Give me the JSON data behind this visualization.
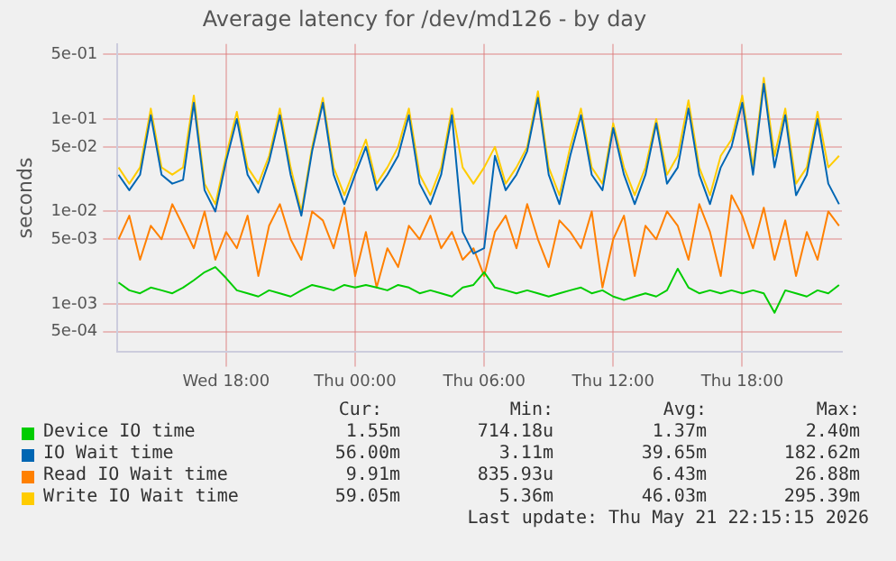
{
  "chart_data": {
    "type": "line",
    "title": "Average latency for /dev/md126 - by day",
    "ylabel": "seconds",
    "x": [
      "2026-05-20T13:00",
      "2026-05-20T13:30",
      "2026-05-20T14:00",
      "2026-05-20T14:30",
      "2026-05-20T15:00",
      "2026-05-20T15:30",
      "2026-05-20T16:00",
      "2026-05-20T16:30",
      "2026-05-20T17:00",
      "2026-05-20T17:30",
      "2026-05-20T18:00",
      "2026-05-20T18:30",
      "2026-05-20T19:00",
      "2026-05-20T19:30",
      "2026-05-20T20:00",
      "2026-05-20T20:30",
      "2026-05-20T21:00",
      "2026-05-20T21:30",
      "2026-05-20T22:00",
      "2026-05-20T22:30",
      "2026-05-20T23:00",
      "2026-05-20T23:30",
      "2026-05-21T00:00",
      "2026-05-21T00:30",
      "2026-05-21T01:00",
      "2026-05-21T01:30",
      "2026-05-21T02:00",
      "2026-05-21T02:30",
      "2026-05-21T03:00",
      "2026-05-21T03:30",
      "2026-05-21T04:00",
      "2026-05-21T04:30",
      "2026-05-21T05:00",
      "2026-05-21T05:30",
      "2026-05-21T06:00",
      "2026-05-21T06:30",
      "2026-05-21T07:00",
      "2026-05-21T07:30",
      "2026-05-21T08:00",
      "2026-05-21T08:30",
      "2026-05-21T09:00",
      "2026-05-21T09:30",
      "2026-05-21T10:00",
      "2026-05-21T10:30",
      "2026-05-21T11:00",
      "2026-05-21T11:30",
      "2026-05-21T12:00",
      "2026-05-21T12:30",
      "2026-05-21T13:00",
      "2026-05-21T13:30",
      "2026-05-21T14:00",
      "2026-05-21T14:30",
      "2026-05-21T15:00",
      "2026-05-21T15:30",
      "2026-05-21T16:00",
      "2026-05-21T16:30",
      "2026-05-21T17:00",
      "2026-05-21T17:30",
      "2026-05-21T18:00",
      "2026-05-21T18:30",
      "2026-05-21T19:00",
      "2026-05-21T19:30",
      "2026-05-21T20:00",
      "2026-05-21T20:30",
      "2026-05-21T21:00",
      "2026-05-21T21:30",
      "2026-05-21T22:00",
      "2026-05-21T22:30"
    ],
    "series": [
      {
        "name": "Device IO time",
        "color": "#00cc00",
        "values": [
          0.0017,
          0.0014,
          0.0013,
          0.0015,
          0.0014,
          0.0013,
          0.0015,
          0.0018,
          0.0022,
          0.0025,
          0.0019,
          0.0014,
          0.0013,
          0.0012,
          0.0014,
          0.0013,
          0.0012,
          0.0014,
          0.0016,
          0.0015,
          0.0014,
          0.0016,
          0.0015,
          0.0016,
          0.0015,
          0.0014,
          0.0016,
          0.0015,
          0.0013,
          0.0014,
          0.0013,
          0.0012,
          0.0015,
          0.0016,
          0.0022,
          0.0015,
          0.0014,
          0.0013,
          0.0014,
          0.0013,
          0.0012,
          0.0013,
          0.0014,
          0.0015,
          0.0013,
          0.0014,
          0.0012,
          0.0011,
          0.0012,
          0.0013,
          0.0012,
          0.0014,
          0.0024,
          0.0015,
          0.0013,
          0.0014,
          0.0013,
          0.0014,
          0.0013,
          0.0014,
          0.0013,
          0.0008,
          0.0014,
          0.0013,
          0.0012,
          0.0014,
          0.0013,
          0.0016
        ]
      },
      {
        "name": "IO Wait time",
        "color": "#0066b3",
        "values": [
          0.025,
          0.017,
          0.025,
          0.11,
          0.025,
          0.02,
          0.022,
          0.15,
          0.017,
          0.01,
          0.035,
          0.1,
          0.025,
          0.016,
          0.035,
          0.11,
          0.025,
          0.009,
          0.045,
          0.15,
          0.025,
          0.012,
          0.025,
          0.05,
          0.017,
          0.025,
          0.04,
          0.11,
          0.02,
          0.012,
          0.025,
          0.11,
          0.006,
          0.0035,
          0.004,
          0.04,
          0.017,
          0.025,
          0.045,
          0.17,
          0.025,
          0.012,
          0.04,
          0.11,
          0.025,
          0.017,
          0.08,
          0.025,
          0.012,
          0.025,
          0.09,
          0.02,
          0.03,
          0.13,
          0.025,
          0.012,
          0.03,
          0.05,
          0.15,
          0.025,
          0.24,
          0.03,
          0.11,
          0.015,
          0.025,
          0.1,
          0.02,
          0.012
        ]
      },
      {
        "name": "Read IO Wait time",
        "color": "#ff8000",
        "values": [
          0.005,
          0.009,
          0.003,
          0.007,
          0.005,
          0.012,
          0.007,
          0.004,
          0.01,
          0.003,
          0.006,
          0.004,
          0.009,
          0.002,
          0.007,
          0.012,
          0.005,
          0.003,
          0.01,
          0.008,
          0.004,
          0.011,
          0.002,
          0.006,
          0.0015,
          0.004,
          0.0025,
          0.007,
          0.005,
          0.009,
          0.004,
          0.006,
          0.003,
          0.004,
          0.002,
          0.006,
          0.009,
          0.004,
          0.012,
          0.005,
          0.0025,
          0.008,
          0.006,
          0.004,
          0.01,
          0.0015,
          0.005,
          0.009,
          0.002,
          0.007,
          0.005,
          0.01,
          0.007,
          0.003,
          0.012,
          0.006,
          0.002,
          0.015,
          0.009,
          0.004,
          0.011,
          0.003,
          0.008,
          0.002,
          0.006,
          0.003,
          0.01,
          0.007
        ]
      },
      {
        "name": "Write IO Wait time",
        "color": "#ffcc00",
        "values": [
          0.03,
          0.02,
          0.03,
          0.13,
          0.03,
          0.025,
          0.03,
          0.18,
          0.02,
          0.012,
          0.04,
          0.12,
          0.03,
          0.02,
          0.04,
          0.13,
          0.03,
          0.01,
          0.05,
          0.17,
          0.03,
          0.015,
          0.03,
          0.06,
          0.02,
          0.03,
          0.05,
          0.13,
          0.025,
          0.015,
          0.03,
          0.13,
          0.03,
          0.02,
          0.03,
          0.05,
          0.02,
          0.03,
          0.05,
          0.2,
          0.03,
          0.015,
          0.05,
          0.13,
          0.03,
          0.02,
          0.09,
          0.03,
          0.015,
          0.03,
          0.1,
          0.025,
          0.04,
          0.16,
          0.03,
          0.015,
          0.04,
          0.06,
          0.18,
          0.03,
          0.28,
          0.04,
          0.13,
          0.02,
          0.03,
          0.12,
          0.03,
          0.04
        ]
      }
    ],
    "log": "y",
    "ylim": [
      0.00034,
      0.65
    ],
    "yticks": [
      {
        "value": 0.0005,
        "label": "5e-04"
      },
      {
        "value": 0.001,
        "label": "1e-03"
      },
      {
        "value": 0.005,
        "label": "5e-03"
      },
      {
        "value": 0.01,
        "label": "1e-02"
      },
      {
        "value": 0.05,
        "label": "5e-02"
      },
      {
        "value": 0.1,
        "label": "1e-01"
      },
      {
        "value": 0.5,
        "label": "5e-01"
      }
    ],
    "xlim": [
      "2026-05-20T12:57",
      "2026-05-21T22:38"
    ],
    "xticks": [
      {
        "value": "2026-05-20T18:00",
        "label": "Wed 18:00"
      },
      {
        "value": "2026-05-21T00:00",
        "label": "Thu 00:00"
      },
      {
        "value": "2026-05-21T06:00",
        "label": "Thu 06:00"
      },
      {
        "value": "2026-05-21T12:00",
        "label": "Thu 12:00"
      },
      {
        "value": "2026-05-21T18:00",
        "label": "Thu 18:00"
      }
    ],
    "grid": true,
    "legend": "bottom",
    "marker": "none",
    "line_style": "solid",
    "annotations": [
      "Cur:",
      "Min:",
      "Avg:",
      "Max:",
      "1.55m",
      "714.18u",
      "1.37m",
      "2.40m",
      "56.00m",
      "3.11m",
      "39.65m",
      "182.62m",
      "9.91m",
      "835.93u",
      "6.43m",
      "26.88m",
      "59.05m",
      "5.36m",
      "46.03m",
      "295.39m",
      "Last update: Thu May 21 22:15:15 2026"
    ]
  }
}
